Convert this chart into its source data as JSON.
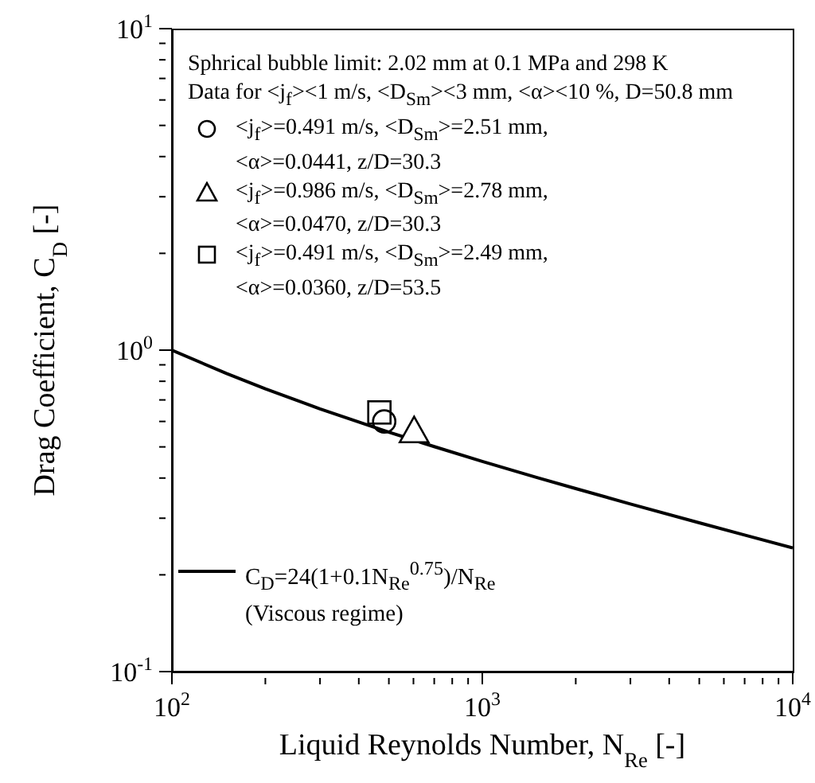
{
  "chart_data": {
    "type": "scatter",
    "xlabel": "Liquid Reynolds Number, N$_{Re}$ [-]",
    "ylabel": "Drag Coefficient, C$_{D}$ [-]",
    "log": "xy",
    "xlim": [
      100,
      10000
    ],
    "xticks": [
      {
        "value": 100,
        "label": "10$^{2}$"
      },
      {
        "value": 200,
        "label": null
      },
      {
        "value": 300,
        "label": null
      },
      {
        "value": 400,
        "label": null
      },
      {
        "value": 500,
        "label": null
      },
      {
        "value": 600,
        "label": null
      },
      {
        "value": 700,
        "label": null
      },
      {
        "value": 800,
        "label": null
      },
      {
        "value": 900,
        "label": null
      },
      {
        "value": 1000,
        "label": "10$^{3}$"
      },
      {
        "value": 2000,
        "label": null
      },
      {
        "value": 3000,
        "label": null
      },
      {
        "value": 4000,
        "label": null
      },
      {
        "value": 5000,
        "label": null
      },
      {
        "value": 6000,
        "label": null
      },
      {
        "value": 7000,
        "label": null
      },
      {
        "value": 8000,
        "label": null
      },
      {
        "value": 9000,
        "label": null
      },
      {
        "value": 10000,
        "label": "10$^{4}$"
      }
    ],
    "ylim": [
      0.1,
      10
    ],
    "yticks": [
      {
        "value": 0.1,
        "label": "10$^{-1}$"
      },
      {
        "value": 0.2,
        "label": null
      },
      {
        "value": 0.3,
        "label": null
      },
      {
        "value": 0.4,
        "label": null
      },
      {
        "value": 0.5,
        "label": null
      },
      {
        "value": 0.6,
        "label": null
      },
      {
        "value": 0.7,
        "label": null
      },
      {
        "value": 0.8,
        "label": null
      },
      {
        "value": 0.9,
        "label": null
      },
      {
        "value": 1,
        "label": "10$^{0}$"
      },
      {
        "value": 2,
        "label": null
      },
      {
        "value": 3,
        "label": null
      },
      {
        "value": 4,
        "label": null
      },
      {
        "value": 5,
        "label": null
      },
      {
        "value": 6,
        "label": null
      },
      {
        "value": 7,
        "label": null
      },
      {
        "value": 8,
        "label": null
      },
      {
        "value": 9,
        "label": null
      },
      {
        "value": 10,
        "label": "10$^{1}$"
      }
    ],
    "grid": false,
    "legend": "top left",
    "annotations": [
      "Sphrical bubble limit: 2.02 mm at 0.1 MPa and 298 K",
      "Data for <j$_{f}$><1 m/s, <D$_{Sm}$><3 mm, <α><10 %, D=50.8 mm"
    ],
    "series": [
      {
        "name": "<j$_{f}$>=0.491 m/s, <D$_{Sm}$>=2.51 mm, <α>=0.0441, z/D=30.3",
        "marker": "circle",
        "color": "#000000",
        "x": [
          483
        ],
        "values": [
          0.6
        ]
      },
      {
        "name": "<j$_{f}$>=0.986 m/s, <D$_{Sm}$>=2.78 mm, <α>=0.0470, z/D=30.3",
        "marker": "triangle",
        "color": "#000000",
        "x": [
          603
        ],
        "values": [
          0.56
        ]
      },
      {
        "name": "<j$_{f}$>=0.491 m/s, <D$_{Sm}$>=2.49 mm, <α>=0.0360, z/D=53.5",
        "marker": "square",
        "color": "#000000",
        "x": [
          466
        ],
        "values": [
          0.64
        ]
      },
      {
        "name": "C$_{D}$=24(1+0.1N$_{Re}$$^{0.75}$)/N$_{Re}$ (Viscous regime)",
        "type": "line",
        "marker": "none",
        "line_style": "solid",
        "color": "#000000",
        "x": [
          100,
          150,
          200,
          300,
          500,
          700,
          1000,
          1500,
          2000,
          3000,
          5000,
          7000,
          10000
        ],
        "values": [
          0.999,
          0.8457,
          0.7582,
          0.6566,
          0.5554,
          0.501,
          0.4507,
          0.4016,
          0.3709,
          0.3323,
          0.2904,
          0.2659,
          0.2424
        ]
      }
    ]
  }
}
